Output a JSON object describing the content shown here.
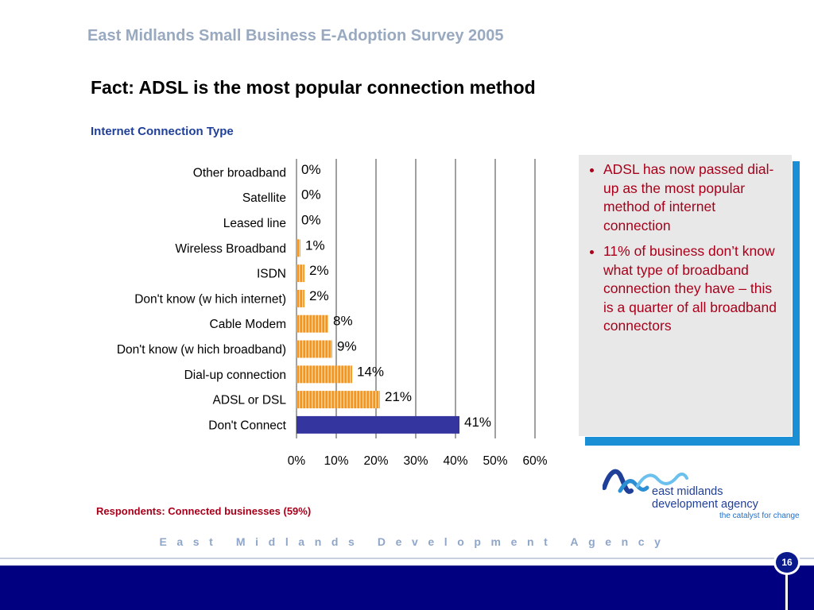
{
  "header": {
    "survey_title": "East Midlands Small Business E-Adoption Survey 2005",
    "slide_title": "Fact: ADSL is the most popular connection method"
  },
  "chart_data": {
    "type": "bar",
    "orientation": "horizontal",
    "title": "Internet Connection Type",
    "categories": [
      "Other broadband",
      "Satellite",
      "Leased line",
      "Wireless Broadband",
      "ISDN",
      "Don't know  (w hich internet)",
      "Cable Modem",
      "Don't know  (w hich broadband)",
      "Dial-up connection",
      "ADSL or DSL",
      "Don't Connect"
    ],
    "values": [
      0,
      0,
      0,
      1,
      2,
      2,
      8,
      9,
      14,
      21,
      41
    ],
    "data_labels": [
      "0%",
      "0%",
      "0%",
      "1%",
      "2%",
      "2%",
      "8%",
      "9%",
      "14%",
      "21%",
      "41%"
    ],
    "xlim": [
      0,
      60
    ],
    "x_ticks": [
      "0%",
      "10%",
      "20%",
      "30%",
      "40%",
      "50%",
      "60%"
    ],
    "grid": true,
    "colors": {
      "connected_bar": "#f7941d",
      "connected_bar_light": "#fcd089",
      "not_connected_bar": "#3535a0",
      "gridline": "#888888"
    }
  },
  "info_box": {
    "bullets": [
      "ADSL has now passed dial-up as the most popular method of internet connection",
      "11% of business don’t know what type of broadband connection they have – this is a quarter of all broadband connectors"
    ]
  },
  "respondents_note": "Respondents: Connected businesses (59%)",
  "logo": {
    "line1": "east midlands",
    "line2": "development agency",
    "tagline": "the catalyst for change"
  },
  "footer": {
    "agency_text": "East Midlands Development Agency",
    "page_number": "16"
  }
}
